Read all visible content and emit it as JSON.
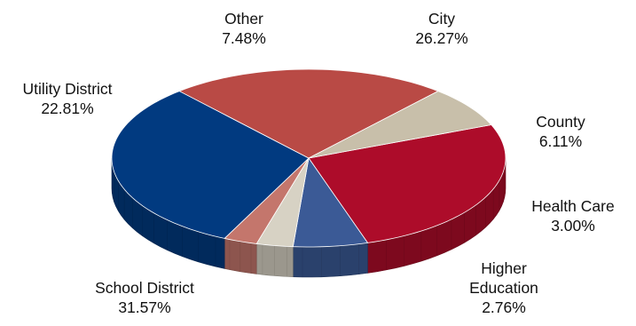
{
  "chart_data": {
    "type": "pie",
    "style": "3d",
    "title": "",
    "legend": "none",
    "slices": [
      {
        "label_lines": [
          "City"
        ],
        "value_label": "26.27%",
        "value": 26.27,
        "color": "#ad0c2a"
      },
      {
        "label_lines": [
          "County"
        ],
        "value_label": "6.11%",
        "value": 6.11,
        "color": "#3b5a96"
      },
      {
        "label_lines": [
          "Health Care"
        ],
        "value_label": "3.00%",
        "value": 3.0,
        "color": "#d7d2c4"
      },
      {
        "label_lines": [
          "Higher",
          "Education"
        ],
        "value_label": "2.76%",
        "value": 2.76,
        "color": "#c4766c"
      },
      {
        "label_lines": [
          "School District"
        ],
        "value_label": "31.57%",
        "value": 31.57,
        "color": "#013a80"
      },
      {
        "label_lines": [
          "Utility District"
        ],
        "value_label": "22.81%",
        "value": 22.81,
        "color": "#b94a45"
      },
      {
        "label_lines": [
          "Other"
        ],
        "value_label": "7.48%",
        "value": 7.48,
        "color": "#c8bfaa"
      }
    ]
  }
}
